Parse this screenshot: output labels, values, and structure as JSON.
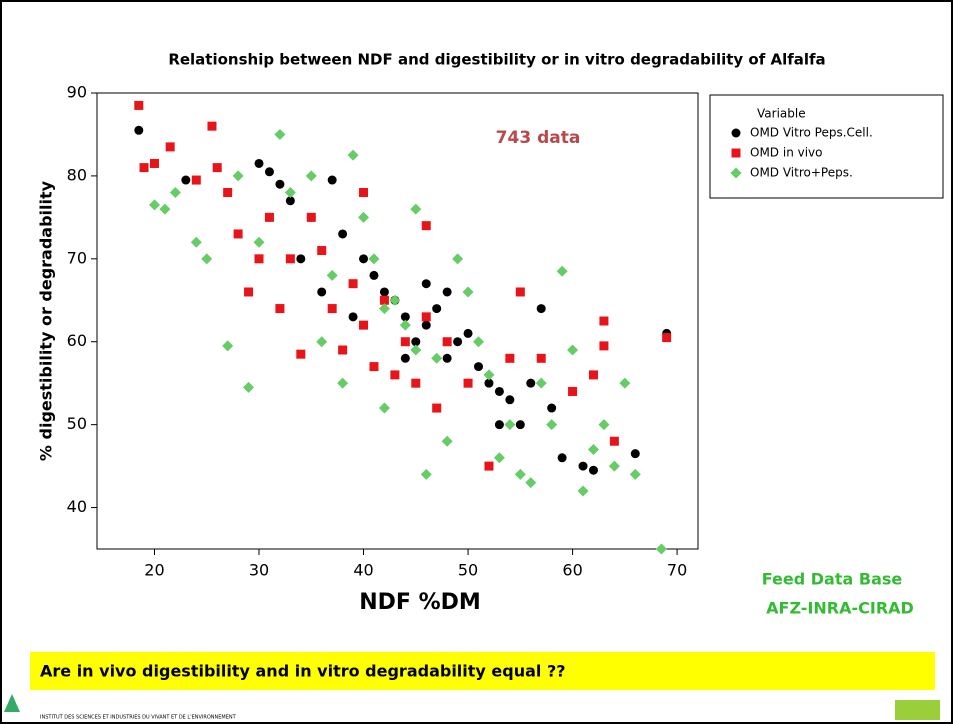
{
  "chart_data": {
    "type": "scatter",
    "title": "Relationship between NDF and digestibility or in vitro degradability of Alfalfa",
    "x_label": "NDF %DM",
    "y_label": "% digestibility or degradability",
    "annotation": "743 data",
    "legend_title": "Variable",
    "legend_position": "outside-right",
    "xlim": [
      14.5,
      72
    ],
    "ylim": [
      35,
      90
    ],
    "xticks": [
      20,
      30,
      40,
      50,
      60,
      70
    ],
    "yticks": [
      40,
      50,
      60,
      70,
      80,
      90
    ],
    "series": [
      {
        "name": "OMD Vitro  Peps.Cell.",
        "color": "#000000",
        "marker": "circle",
        "x": [
          18.5,
          23,
          30,
          31,
          32,
          33,
          35,
          37,
          38,
          40,
          41,
          42,
          43,
          44,
          45,
          46,
          47,
          48,
          49,
          50,
          51,
          52,
          53,
          54,
          55,
          56,
          57,
          58,
          59,
          61,
          62,
          66,
          69,
          36,
          34,
          39,
          46,
          48,
          53,
          44
        ],
        "values": [
          85.5,
          79.5,
          81.5,
          80.5,
          79,
          77,
          75,
          79.5,
          73,
          70,
          68,
          66,
          65,
          63,
          60,
          62,
          64,
          58,
          60,
          61,
          57,
          55,
          54,
          53,
          50,
          55,
          64,
          52,
          46,
          45,
          44.5,
          46.5,
          61,
          66,
          70,
          63,
          67,
          66,
          50,
          58
        ]
      },
      {
        "name": "OMD in vivo",
        "color": "#e8141a",
        "marker": "square",
        "x": [
          18.5,
          19,
          20,
          21.5,
          25.5,
          24,
          26,
          27,
          28,
          29,
          30,
          31,
          32,
          33,
          34,
          35,
          36,
          37,
          38,
          39,
          40,
          41,
          42,
          43,
          44,
          45,
          46,
          47,
          48,
          50,
          52,
          54,
          55,
          57,
          60,
          62,
          63,
          63,
          64,
          69,
          46,
          40
        ],
        "values": [
          88.5,
          81,
          81.5,
          83.5,
          86,
          79.5,
          81,
          78,
          73,
          66,
          70,
          75,
          64,
          70,
          58.5,
          75,
          71,
          64,
          59,
          67,
          62,
          57,
          65,
          56,
          60,
          55,
          63,
          52,
          60,
          55,
          45,
          58,
          66,
          58,
          54,
          56,
          62.5,
          59.5,
          48,
          60.5,
          74,
          78
        ]
      },
      {
        "name": "OMD Vitro+Peps.",
        "color": "#66cc66",
        "marker": "diamond",
        "x": [
          20,
          21,
          22,
          24,
          25,
          27,
          28,
          29,
          30,
          32,
          33,
          35,
          37,
          38,
          39,
          40,
          41,
          42,
          43,
          44,
          45,
          46,
          47,
          48,
          49,
          50,
          51,
          52,
          53,
          54,
          55,
          56,
          57,
          58,
          59,
          60,
          61,
          62,
          63,
          64,
          65,
          66,
          68.5,
          45,
          42,
          36
        ],
        "values": [
          76.5,
          76,
          78,
          72,
          70,
          59.5,
          80,
          54.5,
          72,
          85,
          78,
          80,
          68,
          55,
          82.5,
          75,
          70,
          52,
          65,
          62,
          59,
          44,
          58,
          48,
          70,
          66,
          60,
          56,
          46,
          50,
          44,
          43,
          55,
          50,
          68.5,
          59,
          42,
          47,
          50,
          45,
          55,
          44,
          35,
          76,
          64,
          60
        ]
      }
    ],
    "source_note": [
      "Feed Data Base",
      "AFZ-INRA-CIRAD"
    ],
    "question": "Are in vivo digestibility and in vitro degradability equal ??",
    "institute": "INSTITUT DES SCIENCES ET INDUSTRIES DU VIVANT ET DE L'ENVIRONNEMENT"
  }
}
